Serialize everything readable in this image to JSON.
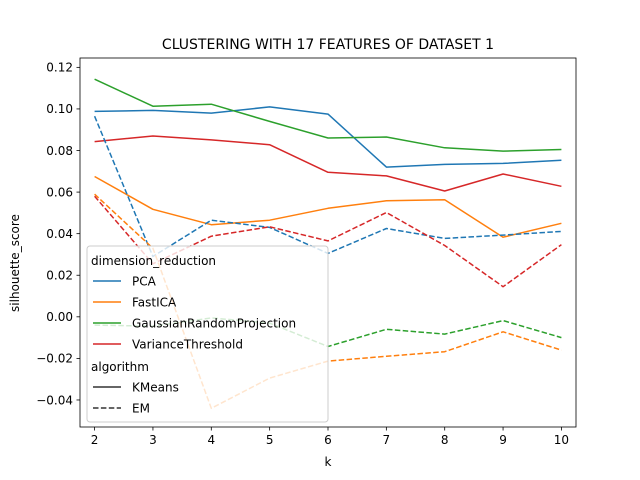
{
  "chart_data": {
    "type": "line",
    "title": "CLUSTERING WITH 17 FEATURES OF DATASET 1",
    "xlabel": "k",
    "ylabel": "silhouette_score",
    "x": [
      2,
      3,
      4,
      5,
      6,
      7,
      8,
      9,
      10
    ],
    "xlim": [
      1.75,
      10.25
    ],
    "ylim": [
      -0.053,
      0.1245
    ],
    "xticks": [
      "2",
      "3",
      "4",
      "5",
      "6",
      "7",
      "8",
      "9",
      "10"
    ],
    "yticks": [
      "−0.04",
      "−0.02",
      "0.00",
      "0.02",
      "0.04",
      "0.06",
      "0.08",
      "0.10",
      "0.12"
    ],
    "ytick_values": [
      -0.04,
      -0.02,
      0.0,
      0.02,
      0.04,
      0.06,
      0.08,
      0.1,
      0.12
    ],
    "grid": false,
    "legend_position": "lower-left",
    "legend": {
      "hue_title": "dimension_reduction",
      "style_title": "algorithm",
      "hue_entries": [
        {
          "name": "PCA",
          "color": "#1f77b4"
        },
        {
          "name": "FastICA",
          "color": "#ff7f0e"
        },
        {
          "name": "GaussianRandomProjection",
          "color": "#2ca02c"
        },
        {
          "name": "VarianceThreshold",
          "color": "#d62728"
        }
      ],
      "style_entries": [
        {
          "name": "KMeans",
          "dash": "solid"
        },
        {
          "name": "EM",
          "dash": "dashed"
        }
      ]
    },
    "series": [
      {
        "name": "PCA",
        "algorithm": "KMeans",
        "color": "#1f77b4",
        "dash": "solid",
        "values": [
          0.0988,
          0.0993,
          0.098,
          0.101,
          0.0975,
          0.072,
          0.0733,
          0.0738,
          0.0753
        ]
      },
      {
        "name": "FastICA",
        "algorithm": "KMeans",
        "color": "#ff7f0e",
        "dash": "solid",
        "values": [
          0.0675,
          0.0517,
          0.0443,
          0.0465,
          0.0522,
          0.0558,
          0.0563,
          0.0383,
          0.045
        ]
      },
      {
        "name": "GaussianRandomProjection",
        "algorithm": "KMeans",
        "color": "#2ca02c",
        "dash": "solid",
        "values": [
          0.1143,
          0.1013,
          0.1023,
          0.094,
          0.086,
          0.0865,
          0.0813,
          0.0797,
          0.0805
        ]
      },
      {
        "name": "VarianceThreshold",
        "algorithm": "KMeans",
        "color": "#d62728",
        "dash": "solid",
        "values": [
          0.0843,
          0.087,
          0.0851,
          0.0828,
          0.0695,
          0.0678,
          0.0605,
          0.0687,
          0.0628
        ]
      },
      {
        "name": "PCA",
        "algorithm": "EM",
        "color": "#1f77b4",
        "dash": "dashed",
        "values": [
          0.0965,
          0.029,
          0.0465,
          0.043,
          0.0305,
          0.0425,
          0.0377,
          0.0393,
          0.0411
        ]
      },
      {
        "name": "FastICA",
        "algorithm": "EM",
        "color": "#ff7f0e",
        "dash": "dashed",
        "values": [
          0.059,
          0.033,
          -0.044,
          -0.0295,
          -0.0213,
          -0.019,
          -0.0168,
          -0.0072,
          -0.016
        ]
      },
      {
        "name": "GaussianRandomProjection",
        "algorithm": "EM",
        "color": "#2ca02c",
        "dash": "dashed",
        "values": [
          -0.004,
          -0.0045,
          -0.0005,
          -0.003,
          -0.0143,
          -0.006,
          -0.0083,
          -0.0018,
          -0.01
        ]
      },
      {
        "name": "VarianceThreshold",
        "algorithm": "EM",
        "color": "#d62728",
        "dash": "dashed",
        "values": [
          0.058,
          0.0255,
          0.0388,
          0.0433,
          0.0365,
          0.0502,
          0.0343,
          0.0145,
          0.0347
        ]
      }
    ]
  }
}
